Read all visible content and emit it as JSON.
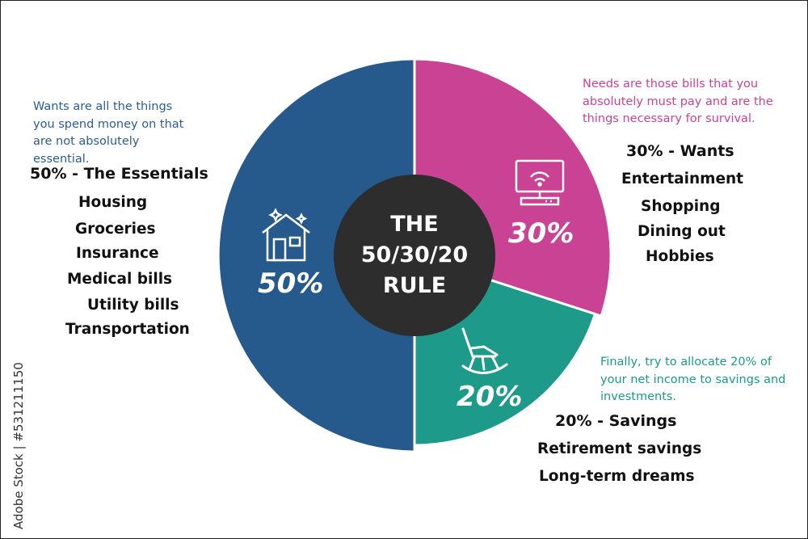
{
  "chart_data": {
    "type": "pie",
    "title": "THE 50/30/20 RULE",
    "slices": [
      {
        "label": "50%",
        "value": 50,
        "color": "#265a8c"
      },
      {
        "label": "30%",
        "value": 30,
        "color": "#c94294"
      },
      {
        "label": "20%",
        "value": 20,
        "color": "#1d9a8a"
      }
    ],
    "center_color": "#2d2d2d"
  },
  "center": {
    "line1": "THE",
    "line2": "50/30/20",
    "line3": "RULE"
  },
  "essentials": {
    "note": "Wants are all the things you spend money on that are not absolutely essential.",
    "header": "50% - The Essentials",
    "items": [
      "Housing",
      "Groceries",
      "Insurance",
      "Medical bills",
      "Utility bills",
      "Transportation"
    ],
    "icon": "house-icon"
  },
  "wants": {
    "note": "Needs are those bills that you absolutely must pay and are the things necessary for survival.",
    "header": "30% - Wants",
    "items": [
      "Entertainment",
      "Shopping",
      "Dining out",
      "Hobbies"
    ],
    "icon": "wifi-tv-icon"
  },
  "savings": {
    "note": "Finally, try to allocate 20% of your net income to savings and investments.",
    "header": "20% - Savings",
    "items": [
      "Retirement savings",
      "Long-term dreams"
    ],
    "icon": "rocking-chair-icon"
  },
  "watermark": "Adobe Stock | #531211150"
}
